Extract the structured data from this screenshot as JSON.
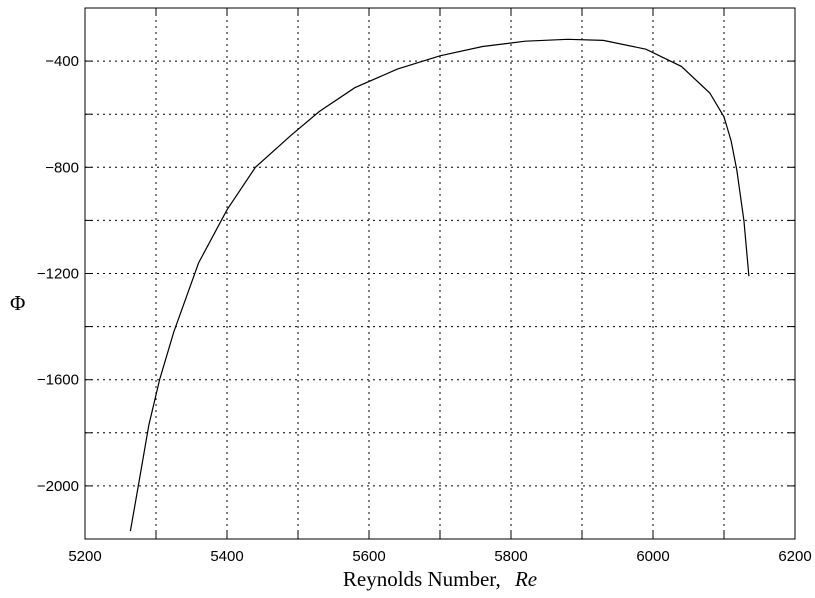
{
  "chart_data": {
    "type": "line",
    "title": "",
    "xlabel": "Reynolds Number,",
    "xlabel_symbol": "Re",
    "ylabel": "Φ",
    "xlim": [
      5200,
      6200
    ],
    "ylim": [
      -2200,
      -200
    ],
    "x_ticks": [
      5200,
      5400,
      5600,
      5800,
      6000,
      6200
    ],
    "x_tick_labels": [
      "5200",
      "5400",
      "5600",
      "5800",
      "6000",
      "6200"
    ],
    "x_grid": [
      5300,
      5400,
      5500,
      5600,
      5700,
      5800,
      5900,
      6000,
      6100
    ],
    "y_ticks": [
      -400,
      -800,
      -1200,
      -1600,
      -2000
    ],
    "y_tick_labels": [
      "−400",
      "−800",
      "−1200",
      "−1600",
      "−2000"
    ],
    "y_grid": [
      -400,
      -600,
      -800,
      -1000,
      -1200,
      -1400,
      -1600,
      -1800,
      -2000
    ],
    "grid": true,
    "legend": "none",
    "series": [
      {
        "x": [
          5264,
          5275,
          5290,
          5305,
          5325,
          5360,
          5400,
          5440,
          5490,
          5530,
          5580,
          5640,
          5700,
          5760,
          5820,
          5880,
          5930,
          5990,
          6040,
          6080,
          6100,
          6110,
          6118,
          6128,
          6135
        ],
        "y": [
          -2170,
          -2000,
          -1770,
          -1600,
          -1420,
          -1160,
          -960,
          -800,
          -680,
          -590,
          -500,
          -430,
          -380,
          -345,
          -325,
          -318,
          -322,
          -355,
          -420,
          -520,
          -610,
          -700,
          -810,
          -1000,
          -1210
        ]
      }
    ]
  }
}
